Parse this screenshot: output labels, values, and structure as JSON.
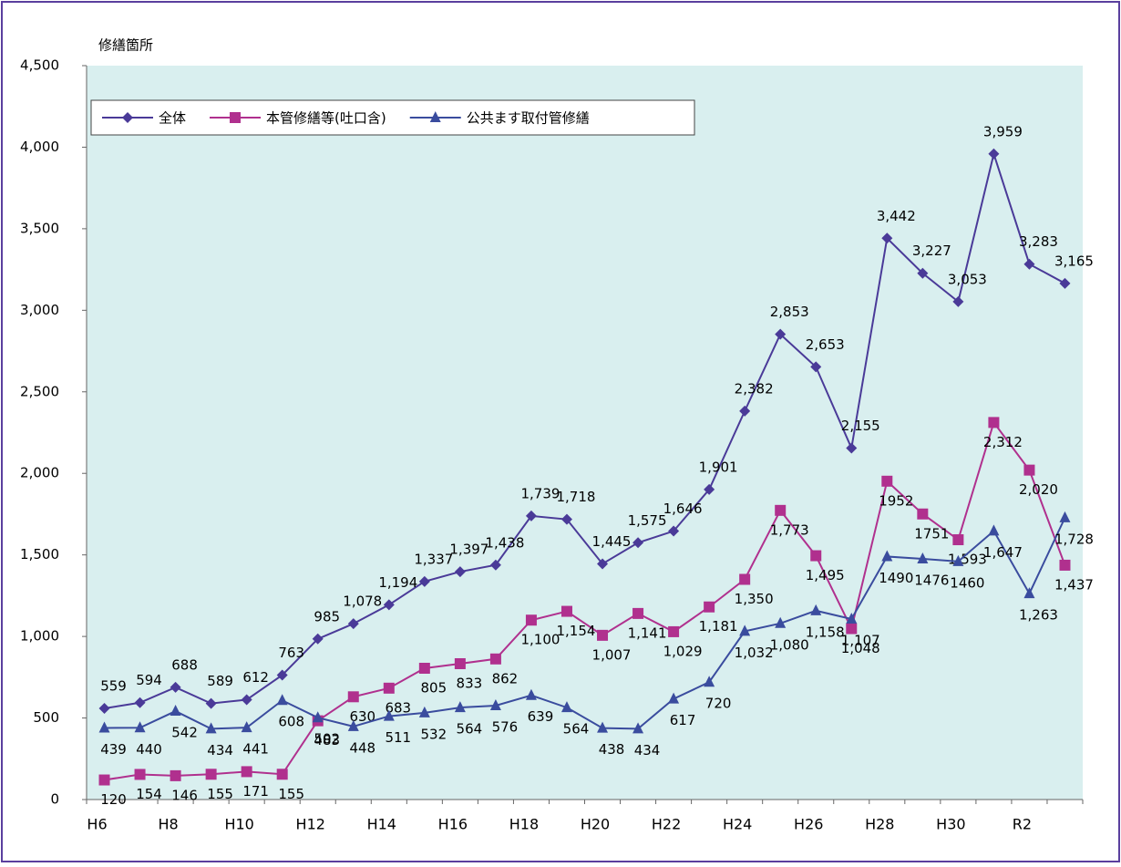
{
  "chart_data": {
    "type": "line",
    "y_axis_label": "修繕箇所",
    "categories": [
      "H6",
      null,
      "H8",
      null,
      "H10",
      null,
      "H12",
      null,
      "H14",
      null,
      "H16",
      null,
      "H18",
      null,
      "H20",
      null,
      "H22",
      null,
      "H24",
      null,
      "H26",
      null,
      "H28",
      null,
      "H30",
      null,
      "R2",
      null
    ],
    "series": [
      {
        "name": "全体",
        "color": "#4a3a98",
        "marker": "diamond",
        "values": [
          559,
          594,
          688,
          589,
          612,
          763,
          985,
          1078,
          1194,
          1337,
          1397,
          1438,
          1739,
          1718,
          1445,
          1575,
          1646,
          1901,
          2382,
          2853,
          2653,
          2155,
          3442,
          3227,
          3053,
          3959,
          3283,
          3165
        ],
        "value_labels": [
          "559",
          "594",
          "688",
          "589",
          "612",
          "763",
          "985",
          "1,078",
          "1,194",
          "1,337",
          "1,397",
          "1,438",
          "1,739",
          "1,718",
          "1,445",
          "1,575",
          "1,646",
          "1,901",
          "2,382",
          "2,853",
          "2,653",
          "2,155",
          "3,442",
          "3,227",
          "3,053",
          "3,959",
          "3,283",
          "3,165"
        ]
      },
      {
        "name": "本管修繕等(吐口含)",
        "color": "#b0308e",
        "marker": "square",
        "values": [
          120,
          154,
          146,
          155,
          171,
          155,
          483,
          630,
          683,
          805,
          833,
          862,
          1100,
          1154,
          1007,
          1141,
          1029,
          1181,
          1350,
          1773,
          1495,
          1048,
          1952,
          1751,
          1593,
          2312,
          2020,
          1437
        ],
        "value_labels": [
          "120",
          "154",
          "146",
          "155",
          "171",
          "155",
          "483",
          "630",
          "683",
          "805",
          "833",
          "862",
          "1,100",
          "1,154",
          "1,007",
          "1,141",
          "1,029",
          "1,181",
          "1,350",
          "1,773",
          "1,495",
          "1,048",
          "1952",
          "1751",
          "1,593",
          "2,312",
          "2,020",
          "1,437"
        ]
      },
      {
        "name": "公共ます取付管修繕",
        "color": "#3a4c9e",
        "marker": "triangle",
        "values": [
          439,
          440,
          542,
          434,
          441,
          608,
          502,
          448,
          511,
          532,
          564,
          576,
          639,
          564,
          438,
          434,
          617,
          720,
          1032,
          1080,
          1158,
          1107,
          1490,
          1476,
          1460,
          1647,
          1263,
          1728
        ],
        "value_labels": [
          "439",
          "440",
          "542",
          "434",
          "441",
          "608",
          "502",
          "448",
          "511",
          "532",
          "564",
          "576",
          "639",
          "564",
          "438",
          "434",
          "617",
          "720",
          "1,032",
          "1,080",
          "1,158",
          "1,107",
          "1490",
          "1476",
          "1460",
          "1,647",
          "1,263",
          "1,728"
        ]
      }
    ],
    "ylim": [
      0,
      4500
    ],
    "yticks": [
      0,
      500,
      {
        "value": 1000,
        "label": "1,000"
      },
      {
        "value": 1500,
        "label": "1,500"
      },
      {
        "value": 2000,
        "label": "2,000"
      },
      {
        "value": 2500,
        "label": "2,500"
      },
      {
        "value": 3000,
        "label": "3,000"
      },
      {
        "value": 3500,
        "label": "3,500"
      },
      {
        "value": 4000,
        "label": "4,000"
      },
      {
        "value": 4500,
        "label": "4,500"
      }
    ],
    "legend": "top-left",
    "plot_background": "#d9efef"
  }
}
